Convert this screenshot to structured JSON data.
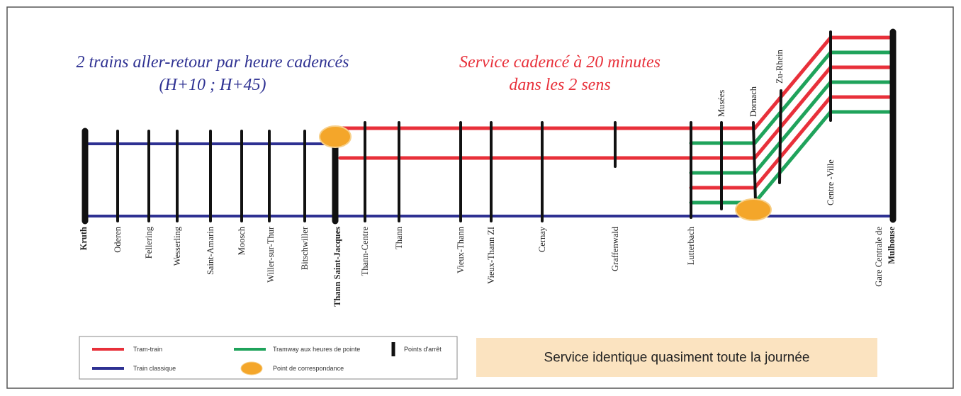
{
  "headings": {
    "left": [
      "2 trains aller-retour par heure cadencés",
      "(H+10 ; H+45)"
    ],
    "right": [
      "Service cadencé à 20 minutes",
      "dans les 2 sens"
    ]
  },
  "stations": [
    "Kruth",
    "Oderen",
    "Fellering",
    "Wesserling",
    "Saint-Amarin",
    "Moosch",
    "Willer-sur-Thur",
    "Bitschwiller",
    "Thann Saint-Jacques",
    "Thann-Centre",
    "Thann",
    "Vieux-Thann",
    "Vieux-Thann ZI",
    "Cernay",
    "Graffenwald",
    "Lutterbach",
    "Musées",
    "Dornach",
    "Zu-Rhein",
    "Centre -Ville",
    "Gare Centrale de",
    "Mulhouse"
  ],
  "legend": {
    "tram_train": "Tram-train",
    "tramway": "Tramway aux heures de pointe",
    "stops": "Points d'arrêt",
    "train": "Train classique",
    "connection": "Point de correspondance"
  },
  "banner": "Service identique quasiment toute la journée"
}
